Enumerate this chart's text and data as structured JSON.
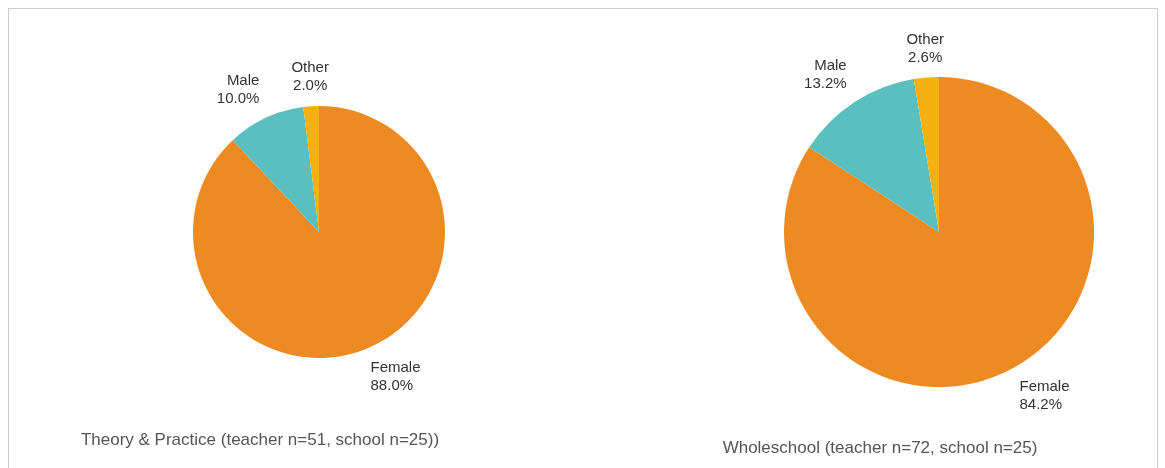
{
  "chart_data": [
    {
      "type": "pie",
      "title": "Theory & Practice (teacher n=51, school n=25))",
      "categories": [
        "Female",
        "Male",
        "Other"
      ],
      "values": [
        88.0,
        10.0,
        2.0
      ],
      "colors": [
        "#ee8a22",
        "#5bbfbf",
        "#f5b114"
      ],
      "value_labels": [
        "88.0%",
        "10.0%",
        "2.0%"
      ],
      "legend": false
    },
    {
      "type": "pie",
      "title": "Wholeschool (teacher n=72, school n=25)",
      "categories": [
        "Female",
        "Male",
        "Other"
      ],
      "values": [
        84.2,
        13.2,
        2.6
      ],
      "colors": [
        "#ee8a22",
        "#5bbfbf",
        "#f5b114"
      ],
      "value_labels": [
        "84.2%",
        "13.2%",
        "2.6%"
      ],
      "legend": false
    }
  ]
}
